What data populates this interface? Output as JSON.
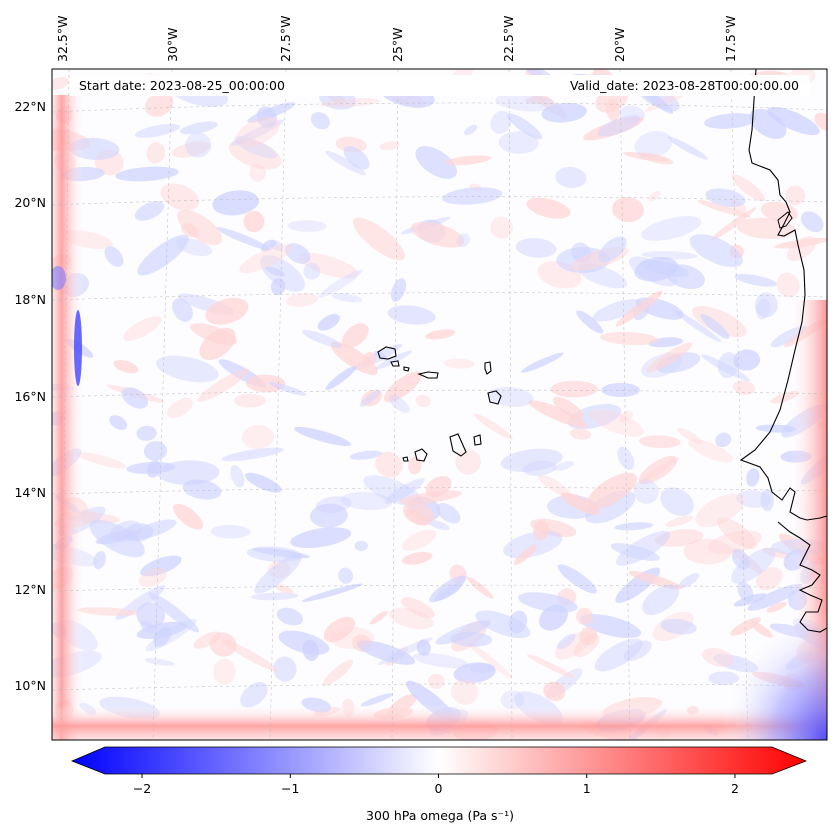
{
  "map": {
    "start_label": "Start date: 2023-08-25_00:00:00",
    "valid_label": "Valid_date: 2023-08-28T00:00:00.00",
    "lon_ticks": [
      "32.5°W",
      "30°W",
      "27.5°W",
      "25°W",
      "22.5°W",
      "20°W",
      "17.5°W"
    ],
    "lat_ticks": [
      "22°N",
      "20°N",
      "18°N",
      "16°N",
      "14°N",
      "12°N",
      "10°N"
    ],
    "field": "300 hPa omega",
    "colormap": "bwr"
  },
  "colorbar": {
    "label": "300 hPa omega (Pa s⁻¹)",
    "ticks": [
      "−2",
      "−1",
      "0",
      "1",
      "2"
    ],
    "tick_values": [
      -2,
      -1,
      0,
      1,
      2
    ],
    "range": [
      -2.5,
      2.5
    ],
    "colors": {
      "low": "#0000ff",
      "mid": "#ffffff",
      "high": "#ff0000"
    }
  }
}
